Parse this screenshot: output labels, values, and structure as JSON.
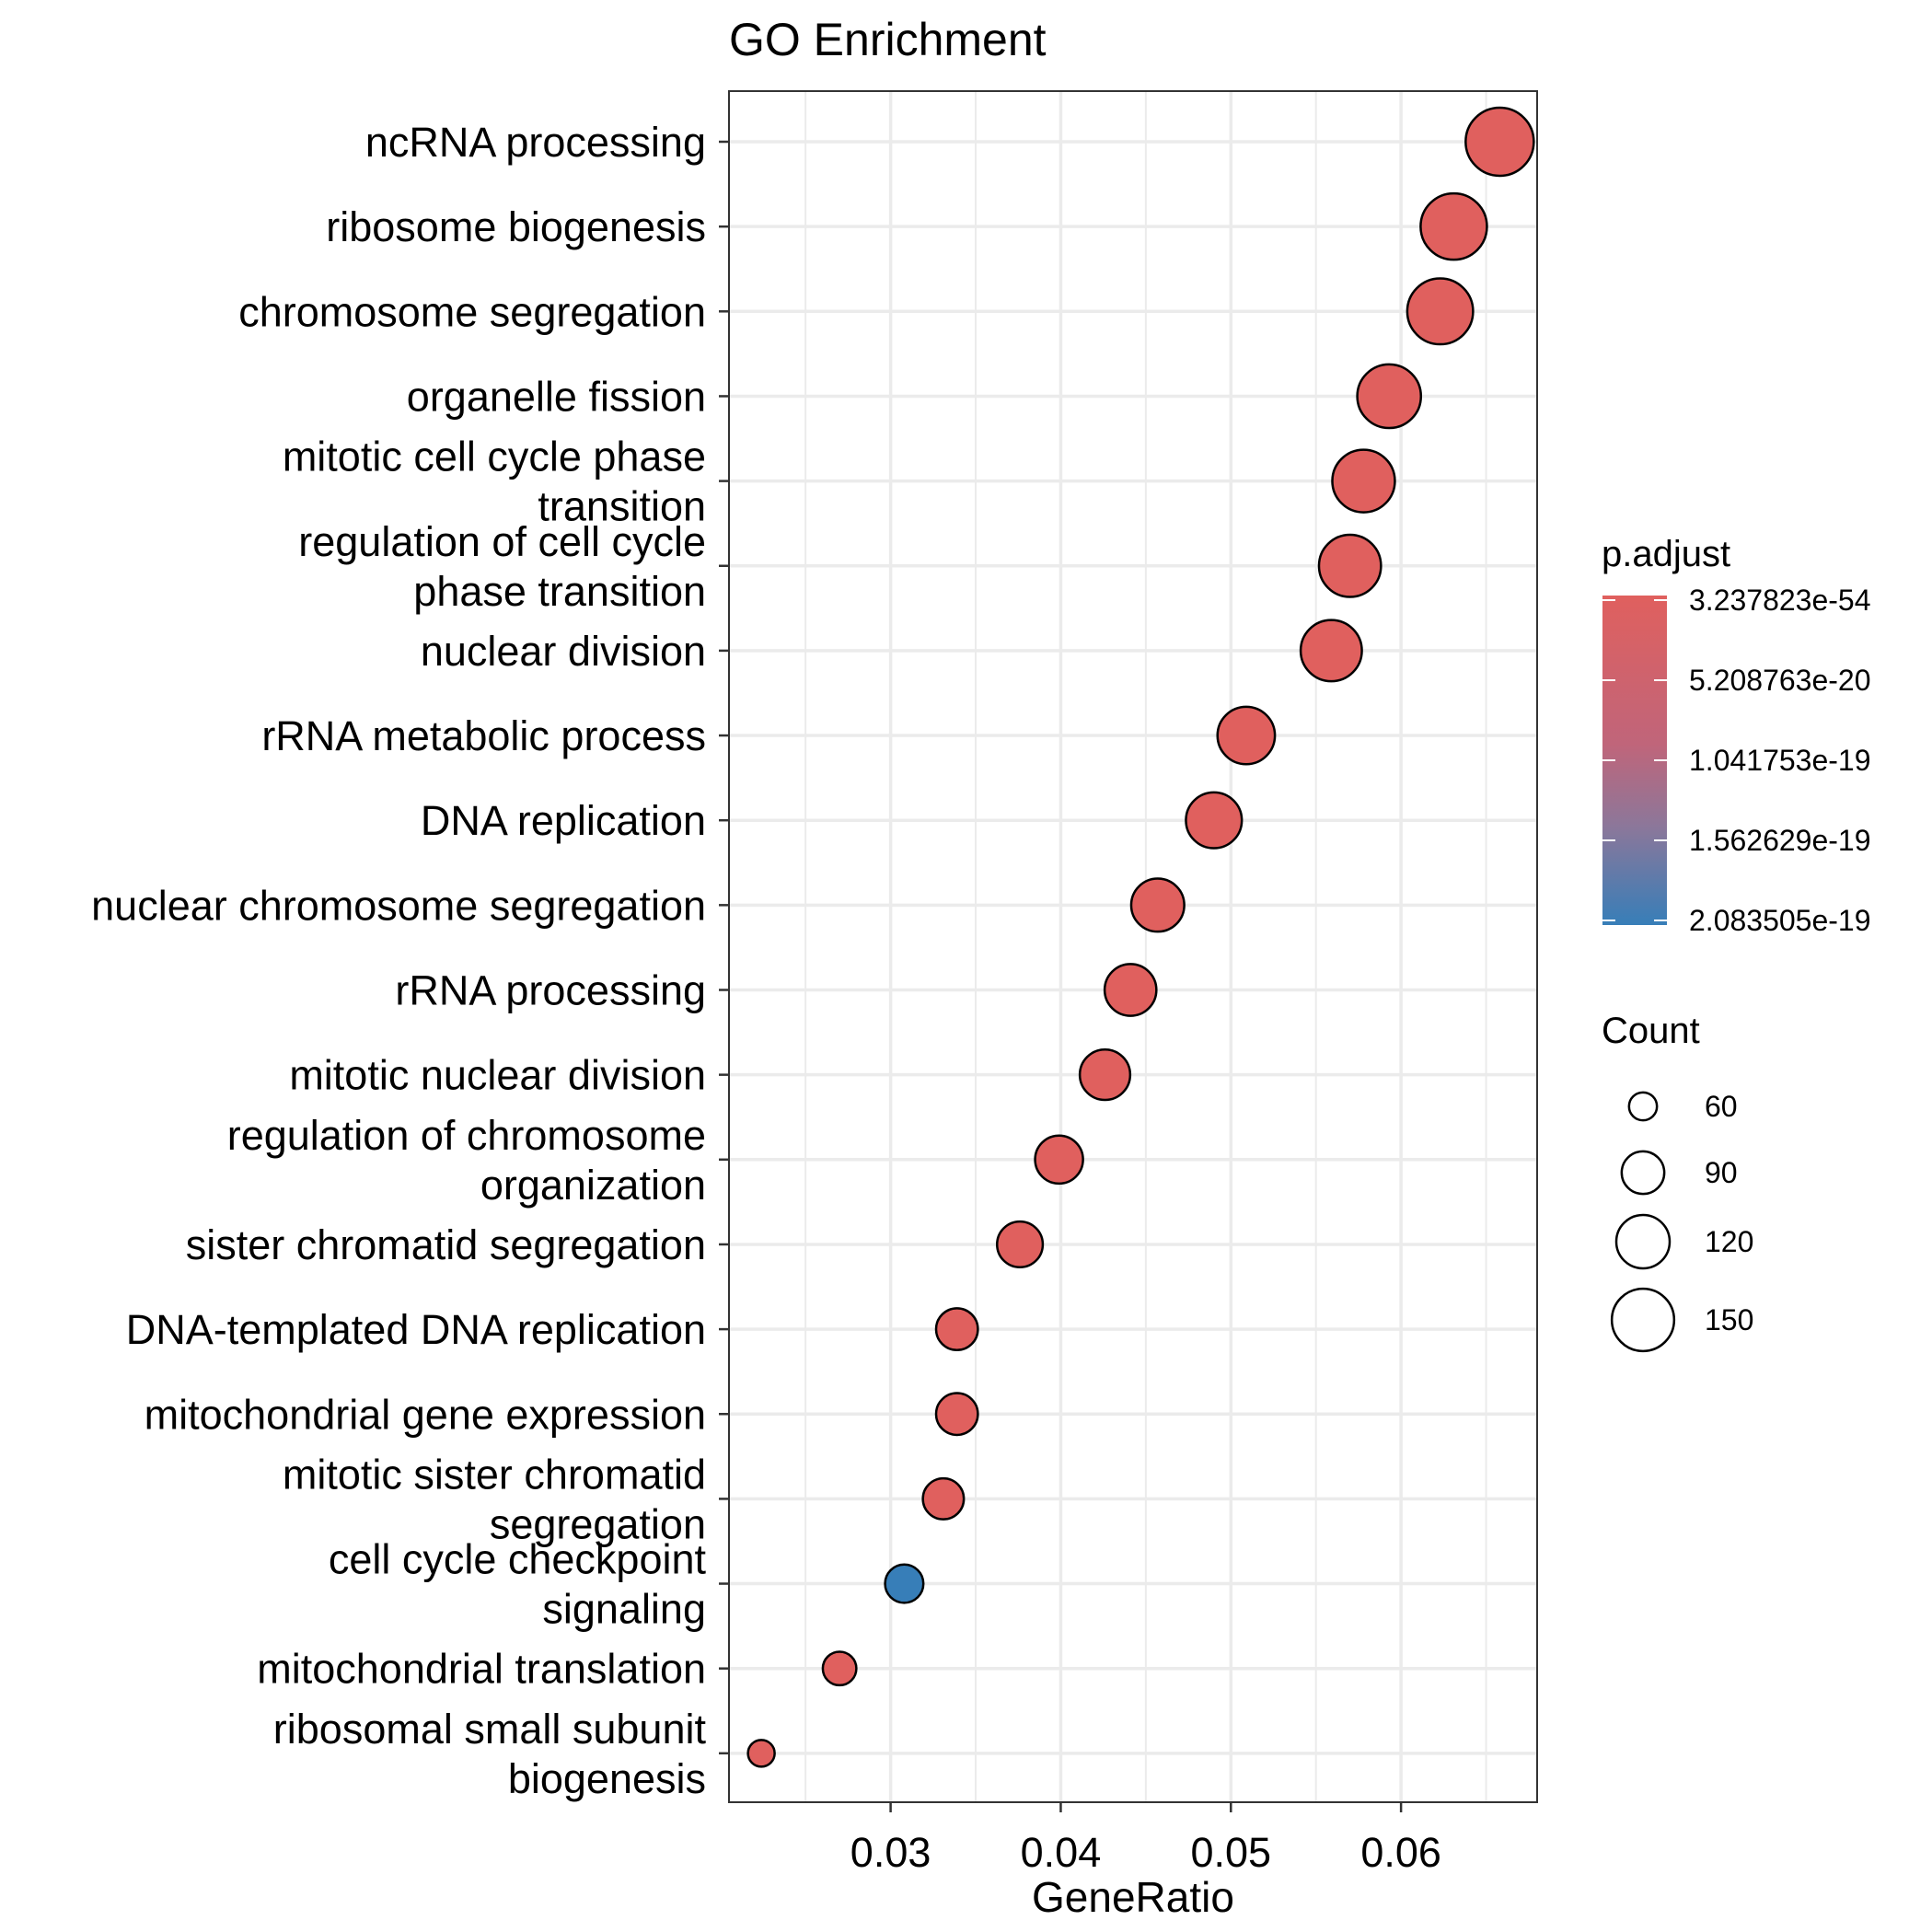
{
  "chart_data": {
    "type": "scatter",
    "title": "GO Enrichment",
    "xlabel": "GeneRatio",
    "ylabel": "",
    "xlim": [
      0.0205,
      0.068
    ],
    "x_ticks": [
      0.03,
      0.04,
      0.05,
      0.06
    ],
    "x_tick_labels": [
      "0.03",
      "0.04",
      "0.05",
      "0.06"
    ],
    "grid": true,
    "legend_position": "right",
    "categories": [
      "ncRNA processing",
      "ribosome biogenesis",
      "chromosome segregation",
      "organelle fission",
      "mitotic cell cycle phase\ntransition",
      "regulation of cell cycle\nphase transition",
      "nuclear division",
      "rRNA metabolic process",
      "DNA replication",
      "nuclear chromosome segregation",
      "rRNA processing",
      "mitotic nuclear division",
      "regulation of chromosome\norganization",
      "sister chromatid segregation",
      "DNA-templated DNA replication",
      "mitochondrial gene expression",
      "mitotic sister chromatid\nsegregation",
      "cell cycle checkpoint\nsignaling",
      "mitochondrial translation",
      "ribosomal small subunit\nbiogenesis"
    ],
    "gene_ratio": [
      0.0658,
      0.0631,
      0.0623,
      0.0593,
      0.0578,
      0.057,
      0.0559,
      0.0509,
      0.049,
      0.0457,
      0.0441,
      0.0426,
      0.0399,
      0.0376,
      0.0339,
      0.0339,
      0.0331,
      0.0308,
      0.027,
      0.0224
    ],
    "count": [
      172,
      165,
      163,
      155,
      151,
      149,
      146,
      133,
      128,
      119,
      115,
      111,
      104,
      98,
      88,
      88,
      86,
      80,
      70,
      58
    ],
    "color_scale": "red",
    "color_scale_high": "blue",
    "point_color": [
      "low",
      "low",
      "low",
      "low",
      "low",
      "low",
      "low",
      "low",
      "low",
      "low",
      "low",
      "low",
      "low",
      "low",
      "low",
      "low",
      "low",
      "high",
      "low",
      "low"
    ],
    "colors": {
      "low": "#E0605E",
      "high": "#377EB8",
      "mid": "#8C779A",
      "stroke": "#000000",
      "grid": "#EBEBEB",
      "panel_border": "#333333"
    },
    "legend_color": {
      "title": "p.adjust",
      "labels": [
        "3.237823e-54",
        "5.208763e-20",
        "1.041753e-19",
        "1.562629e-19",
        "2.083505e-19"
      ]
    },
    "legend_size": {
      "title": "Count",
      "values": [
        60,
        90,
        120,
        150
      ],
      "labels": [
        "60",
        "90",
        "120",
        "150"
      ]
    }
  }
}
